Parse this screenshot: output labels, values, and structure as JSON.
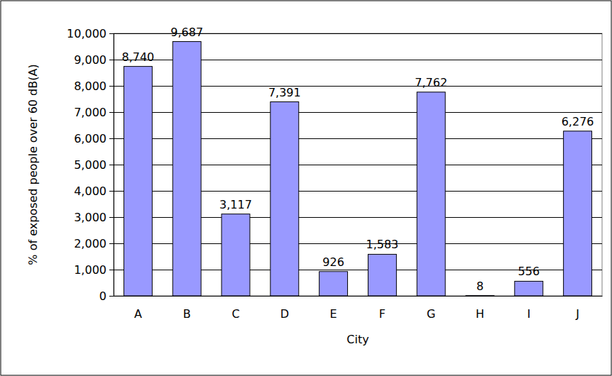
{
  "chart_data": {
    "type": "bar",
    "x_label": "City",
    "y_label": "% of exposed people over 60 dB(A)",
    "categories": [
      "A",
      "B",
      "C",
      "D",
      "E",
      "F",
      "G",
      "H",
      "I",
      "J"
    ],
    "values": [
      8740,
      9687,
      3117,
      7391,
      926,
      1583,
      7762,
      8,
      556,
      6276
    ],
    "value_labels": [
      "8,740",
      "9,687",
      "3,117",
      "7,391",
      "926",
      "1,583",
      "7,762",
      "8",
      "556",
      "6,276"
    ],
    "color": "#9999ff",
    "ylim": [
      0,
      10000
    ],
    "yticks": [
      0,
      {
        "value": 1000,
        "label": "1,000"
      },
      {
        "value": 2000,
        "label": "2,000"
      },
      {
        "value": 3000,
        "label": "3,000"
      },
      {
        "value": 4000,
        "label": "4,000"
      },
      {
        "value": 5000,
        "label": "5,000"
      },
      {
        "value": 6000,
        "label": "6,000"
      },
      {
        "value": 7000,
        "label": "7,000"
      },
      {
        "value": 8000,
        "label": "8,000"
      },
      {
        "value": 9000,
        "label": "9,000"
      },
      {
        "value": 10000,
        "label": "10,000"
      }
    ],
    "grid": true,
    "data_labels": true
  }
}
